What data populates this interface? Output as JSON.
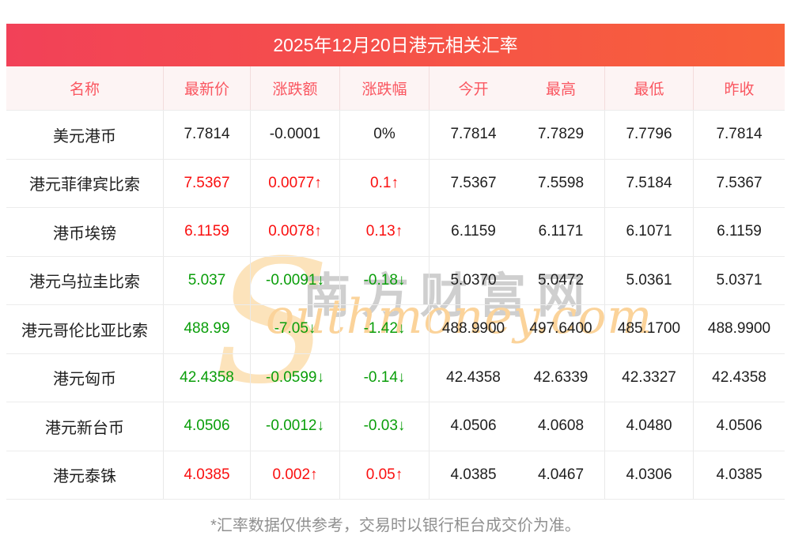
{
  "title": "2025年12月20日港元相关汇率",
  "columns": [
    "名称",
    "最新价",
    "涨跌额",
    "涨跌幅",
    "今开",
    "最高",
    "最低",
    "昨收"
  ],
  "rows": [
    {
      "name": "美元港币",
      "trend": "flat",
      "values": [
        "7.7814",
        "-0.0001",
        "0%",
        "7.7814",
        "7.7829",
        "7.7796",
        "7.7814"
      ]
    },
    {
      "name": "港元菲律宾比索",
      "trend": "up",
      "values": [
        "7.5367",
        "0.0077↑",
        "0.1↑",
        "7.5367",
        "7.5598",
        "7.5184",
        "7.5367"
      ]
    },
    {
      "name": "港币埃镑",
      "trend": "up",
      "values": [
        "6.1159",
        "0.0078↑",
        "0.13↑",
        "6.1159",
        "6.1171",
        "6.1071",
        "6.1159"
      ]
    },
    {
      "name": "港元乌拉圭比索",
      "trend": "down",
      "values": [
        "5.037",
        "-0.0091↓",
        "-0.18↓",
        "5.0370",
        "5.0472",
        "5.0361",
        "5.0371"
      ]
    },
    {
      "name": "港元哥伦比亚比索",
      "trend": "down",
      "values": [
        "488.99",
        "-7.05↓",
        "-1.42↓",
        "488.9900",
        "497.6400",
        "485.1700",
        "488.9900"
      ]
    },
    {
      "name": "港元匈币",
      "trend": "down",
      "values": [
        "42.4358",
        "-0.0599↓",
        "-0.14↓",
        "42.4358",
        "42.6339",
        "42.3327",
        "42.4358"
      ]
    },
    {
      "name": "港元新台币",
      "trend": "down",
      "values": [
        "4.0506",
        "-0.0012↓",
        "-0.03↓",
        "4.0506",
        "4.0608",
        "4.0480",
        "4.0506"
      ]
    },
    {
      "name": "港元泰铢",
      "trend": "up",
      "values": [
        "4.0385",
        "0.002↑",
        "0.05↑",
        "4.0385",
        "4.0467",
        "4.0306",
        "4.0385"
      ]
    }
  ],
  "colors": {
    "up": "#fa0f0f",
    "down": "#0a9e0a",
    "flat": "#1e1e1e",
    "banner_gradient_left": "#f24158",
    "banner_gradient_right": "#f8613a",
    "header_text": "#fa5660",
    "header_bg": "#fdf4f4"
  },
  "watermark": {
    "s_glyph": "S",
    "cn": "南方财富网",
    "en": "outhmoney.com"
  },
  "footnote": "*汇率数据仅供参考，交易时以银行柜台成交价为准。",
  "chart_data": {
    "type": "table",
    "title": "2025年12月20日港元相关汇率",
    "columns": [
      "名称",
      "最新价",
      "涨跌额",
      "涨跌幅",
      "今开",
      "最高",
      "最低",
      "昨收"
    ],
    "rows": [
      [
        "美元港币",
        "7.7814",
        "-0.0001",
        "0%",
        "7.7814",
        "7.7829",
        "7.7796",
        "7.7814"
      ],
      [
        "港元菲律宾比索",
        "7.5367",
        "0.0077↑",
        "0.1↑",
        "7.5367",
        "7.5598",
        "7.5184",
        "7.5367"
      ],
      [
        "港币埃镑",
        "6.1159",
        "0.0078↑",
        "0.13↑",
        "6.1159",
        "6.1171",
        "6.1071",
        "6.1159"
      ],
      [
        "港元乌拉圭比索",
        "5.037",
        "-0.0091↓",
        "-0.18↓",
        "5.0370",
        "5.0472",
        "5.0361",
        "5.0371"
      ],
      [
        "港元哥伦比亚比索",
        "488.99",
        "-7.05↓",
        "-1.42↓",
        "488.9900",
        "497.6400",
        "485.1700",
        "488.9900"
      ],
      [
        "港元匈币",
        "42.4358",
        "-0.0599↓",
        "-0.14↓",
        "42.4358",
        "42.6339",
        "42.3327",
        "42.4358"
      ],
      [
        "港元新台币",
        "4.0506",
        "-0.0012↓",
        "-0.03↓",
        "4.0506",
        "4.0608",
        "4.0480",
        "4.0506"
      ],
      [
        "港元泰铢",
        "4.0385",
        "0.002↑",
        "0.05↑",
        "4.0385",
        "4.0467",
        "4.0306",
        "4.0385"
      ]
    ]
  }
}
